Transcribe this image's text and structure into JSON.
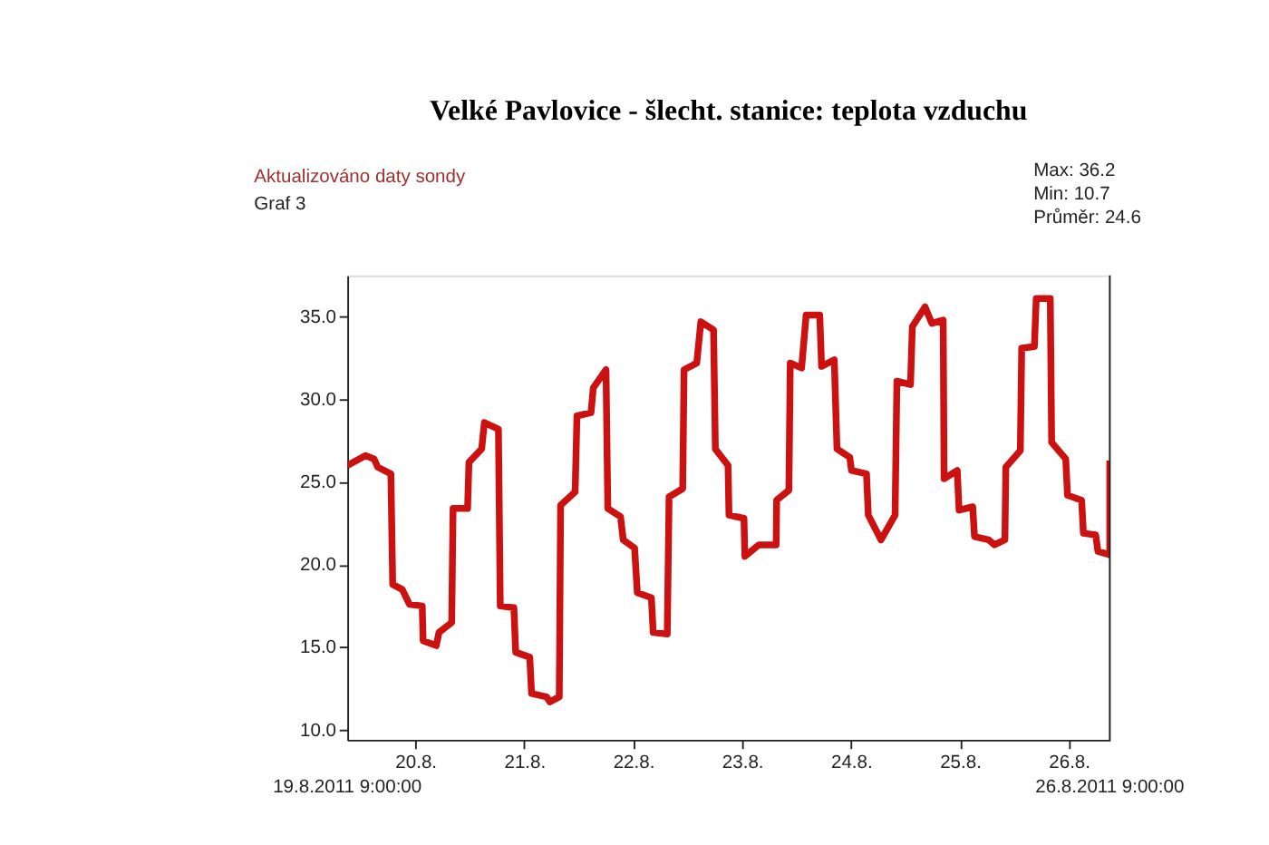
{
  "chart_data": {
    "type": "line",
    "title": "Velké Pavlovice - šlecht. stanice: teplota vzduchu",
    "annotations": [
      "Aktualizováno daty sondy",
      "Graf 3",
      "Max: 36.2",
      "Min: 10.7",
      "Průměr: 24.6",
      "19.8.2011 9:00:00",
      "26.8.2011 9:00:00"
    ],
    "x": [
      "2011-08-19T09:00",
      "2011-08-19T13:00",
      "2011-08-19T14:54",
      "2011-08-19T15:42",
      "2011-08-19T18:36",
      "2011-08-19T19:00",
      "2011-08-19T21:06",
      "2011-08-19T22:42",
      "2011-08-20T01:30",
      "2011-08-20T01:42",
      "2011-08-20T04:36",
      "2011-08-20T05:12",
      "2011-08-20T08:00",
      "2011-08-20T08:18",
      "2011-08-20T11:30",
      "2011-08-20T11:48",
      "2011-08-20T14:36",
      "2011-08-20T15:12",
      "2011-08-20T18:18",
      "2011-08-20T18:42",
      "2011-08-20T21:42",
      "2011-08-20T22:06",
      "2011-08-21T01:12",
      "2011-08-21T01:36",
      "2011-08-21T04:54",
      "2011-08-21T05:36",
      "2011-08-21T07:42",
      "2011-08-21T08:00",
      "2011-08-21T11:12",
      "2011-08-21T11:36",
      "2011-08-21T14:42",
      "2011-08-21T15:12",
      "2011-08-21T18:00",
      "2011-08-21T18:24",
      "2011-08-21T21:12",
      "2011-08-21T21:48",
      "2011-08-22T00:18",
      "2011-08-22T00:54",
      "2011-08-22T04:00",
      "2011-08-22T04:24",
      "2011-08-22T07:30",
      "2011-08-22T07:54",
      "2011-08-22T10:54",
      "2011-08-22T11:12",
      "2011-08-22T14:00",
      "2011-08-22T14:54",
      "2011-08-22T17:42",
      "2011-08-22T18:06",
      "2011-08-22T20:54",
      "2011-08-22T21:06",
      "2011-08-23T00:24",
      "2011-08-23T00:36",
      "2011-08-23T03:42",
      "2011-08-23T07:30",
      "2011-08-23T07:36",
      "2011-08-23T10:18",
      "2011-08-23T10:36",
      "2011-08-23T13:06",
      "2011-08-23T14:06",
      "2011-08-23T17:06",
      "2011-08-23T17:30",
      "2011-08-23T20:18",
      "2011-08-23T20:54",
      "2011-08-23T23:42",
      "2011-08-24T00:06",
      "2011-08-24T03:24",
      "2011-08-24T03:48",
      "2011-08-24T06:36",
      "2011-08-24T09:42",
      "2011-08-24T10:06",
      "2011-08-24T13:06",
      "2011-08-24T13:30",
      "2011-08-24T16:18",
      "2011-08-24T17:48",
      "2011-08-24T20:18",
      "2011-08-24T20:30",
      "2011-08-24T23:24",
      "2011-08-24T23:48",
      "2011-08-25T02:48",
      "2011-08-25T03:12",
      "2011-08-25T06:18",
      "2011-08-25T07:36",
      "2011-08-25T09:54",
      "2011-08-25T10:06",
      "2011-08-25T13:18",
      "2011-08-25T13:36",
      "2011-08-25T16:24",
      "2011-08-25T16:48",
      "2011-08-25T19:54",
      "2011-08-25T20:12",
      "2011-08-25T23:18",
      "2011-08-25T23:42",
      "2011-08-26T02:48",
      "2011-08-26T03:12",
      "2011-08-26T05:54",
      "2011-08-26T06:24",
      "2011-08-26T09:00",
      "2011-08-26T09:00"
    ],
    "series": [
      {
        "color": "#cc1111",
        "values": [
          26.0,
          26.6,
          26.4,
          25.9,
          25.5,
          18.8,
          18.5,
          17.6,
          17.5,
          15.4,
          15.1,
          15.9,
          16.5,
          23.4,
          23.4,
          26.2,
          27.0,
          28.6,
          28.2,
          17.5,
          17.4,
          14.7,
          14.4,
          12.2,
          12.0,
          11.7,
          12.0,
          23.6,
          24.4,
          29.0,
          29.2,
          30.7,
          31.8,
          23.4,
          22.9,
          21.5,
          21.0,
          18.3,
          18.0,
          15.9,
          15.8,
          24.1,
          24.6,
          31.8,
          32.2,
          34.7,
          34.2,
          27.0,
          26.0,
          23.0,
          22.8,
          20.5,
          21.2,
          21.2,
          23.9,
          24.5,
          32.2,
          31.9,
          35.1,
          35.1,
          32.0,
          32.4,
          27.0,
          26.5,
          25.7,
          25.5,
          23.0,
          21.5,
          23.0,
          31.1,
          30.9,
          34.4,
          35.6,
          34.6,
          34.8,
          25.2,
          25.7,
          23.3,
          23.5,
          21.7,
          21.5,
          21.2,
          21.5,
          25.9,
          26.9,
          33.1,
          33.2,
          36.1,
          36.1,
          27.4,
          26.4,
          24.2,
          23.9,
          21.9,
          21.8,
          20.8,
          20.6,
          26.3
        ]
      }
    ],
    "xlim": [
      "2011-08-19T09:00",
      "2011-08-26T09:00"
    ],
    "xticks": [
      {
        "value": "2011-08-20",
        "label": "20.8."
      },
      {
        "value": "2011-08-21",
        "label": "21.8."
      },
      {
        "value": "2011-08-22",
        "label": "22.8."
      },
      {
        "value": "2011-08-23",
        "label": "23.8."
      },
      {
        "value": "2011-08-24",
        "label": "24.8."
      },
      {
        "value": "2011-08-25",
        "label": "25.8."
      },
      {
        "value": "2011-08-26",
        "label": "26.8."
      }
    ],
    "ylim": [
      9.4,
      37.5
    ],
    "yticks": [
      {
        "value": 10,
        "label": "10.0"
      },
      {
        "value": 15,
        "label": "15.0"
      },
      {
        "value": 20,
        "label": "20.0"
      },
      {
        "value": 25,
        "label": "25.0"
      },
      {
        "value": 30,
        "label": "30.0"
      },
      {
        "value": 35,
        "label": "35.0"
      }
    ],
    "grid": false,
    "marker": "none",
    "line_style": "solid"
  }
}
